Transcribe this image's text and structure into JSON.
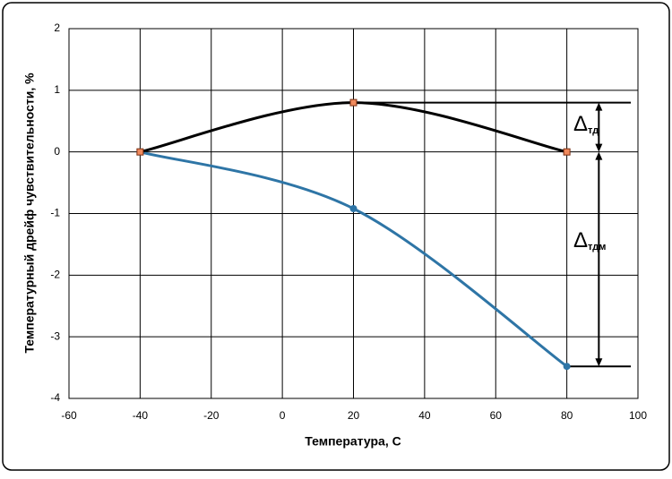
{
  "chart_data": {
    "type": "line",
    "xlabel": "Температура, С",
    "ylabel": "Температурный дрейф чувствительности, %",
    "xlim": [
      -60,
      100
    ],
    "xticks": [
      -60,
      -40,
      -20,
      0,
      20,
      40,
      60,
      80,
      100
    ],
    "ylim": [
      -4,
      2
    ],
    "yticks": [
      -4,
      -3,
      -2,
      -1,
      0,
      1,
      2
    ],
    "grid": true,
    "series": [
      {
        "x": [
          -40,
          20,
          80
        ],
        "values": [
          0,
          -0.92,
          -3.48
        ],
        "color": "#2e75a6",
        "marker": "circle"
      },
      {
        "x": [
          -40,
          20,
          80
        ],
        "values": [
          0,
          0.8,
          0
        ],
        "color": "#000000",
        "marker": "square"
      }
    ],
    "annotations": [
      {
        "symbol": "Δ",
        "subscript": "тд"
      },
      {
        "symbol": "Δ",
        "subscript": "тдм"
      }
    ]
  }
}
